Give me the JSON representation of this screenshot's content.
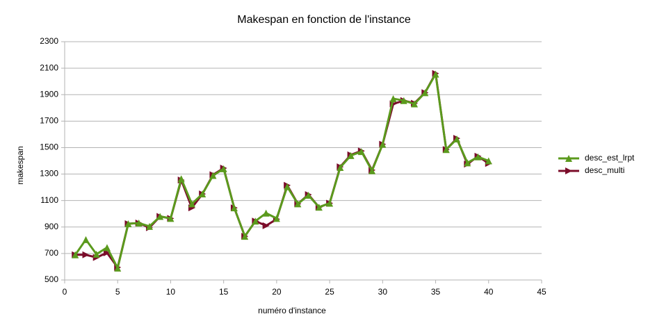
{
  "chart_data": {
    "type": "line",
    "title": "Makespan en fonction de l'instance",
    "xlabel": "numéro d'instance",
    "ylabel": "makespan",
    "x": [
      1,
      2,
      3,
      4,
      5,
      6,
      7,
      8,
      9,
      10,
      11,
      12,
      13,
      14,
      15,
      16,
      17,
      18,
      19,
      20,
      21,
      22,
      23,
      24,
      25,
      26,
      27,
      28,
      29,
      30,
      31,
      32,
      33,
      34,
      35,
      36,
      37,
      38,
      39,
      40
    ],
    "series": [
      {
        "name": "desc_est_lrpt",
        "color": "#5b9a1d",
        "marker": "triangle-up",
        "values": [
          690,
          805,
          695,
          745,
          590,
          925,
          930,
          905,
          980,
          965,
          1265,
          1075,
          1150,
          1290,
          1340,
          1045,
          830,
          945,
          1005,
          965,
          1205,
          1075,
          1140,
          1050,
          1080,
          1350,
          1440,
          1470,
          1325,
          1525,
          1870,
          1855,
          1830,
          1915,
          2055,
          1485,
          1565,
          1385,
          1430,
          1400
        ]
      },
      {
        "name": "desc_multi",
        "color": "#7b0c2a",
        "marker": "triangle-right",
        "values": [
          690,
          690,
          670,
          705,
          595,
          925,
          930,
          895,
          980,
          965,
          1255,
          1045,
          1150,
          1295,
          1345,
          1045,
          830,
          945,
          910,
          960,
          1215,
          1075,
          1145,
          1050,
          1080,
          1355,
          1445,
          1475,
          1330,
          1525,
          1830,
          1855,
          1835,
          1915,
          2060,
          1485,
          1570,
          1375,
          1435,
          1380
        ]
      }
    ],
    "xlim": [
      0,
      45
    ],
    "xticks": [
      0,
      5,
      10,
      15,
      20,
      25,
      30,
      35,
      40,
      45
    ],
    "ylim": [
      500,
      2300
    ],
    "yticks": [
      500,
      700,
      900,
      1100,
      1300,
      1500,
      1700,
      1900,
      2100,
      2300
    ],
    "grid": true,
    "legend": "right"
  }
}
